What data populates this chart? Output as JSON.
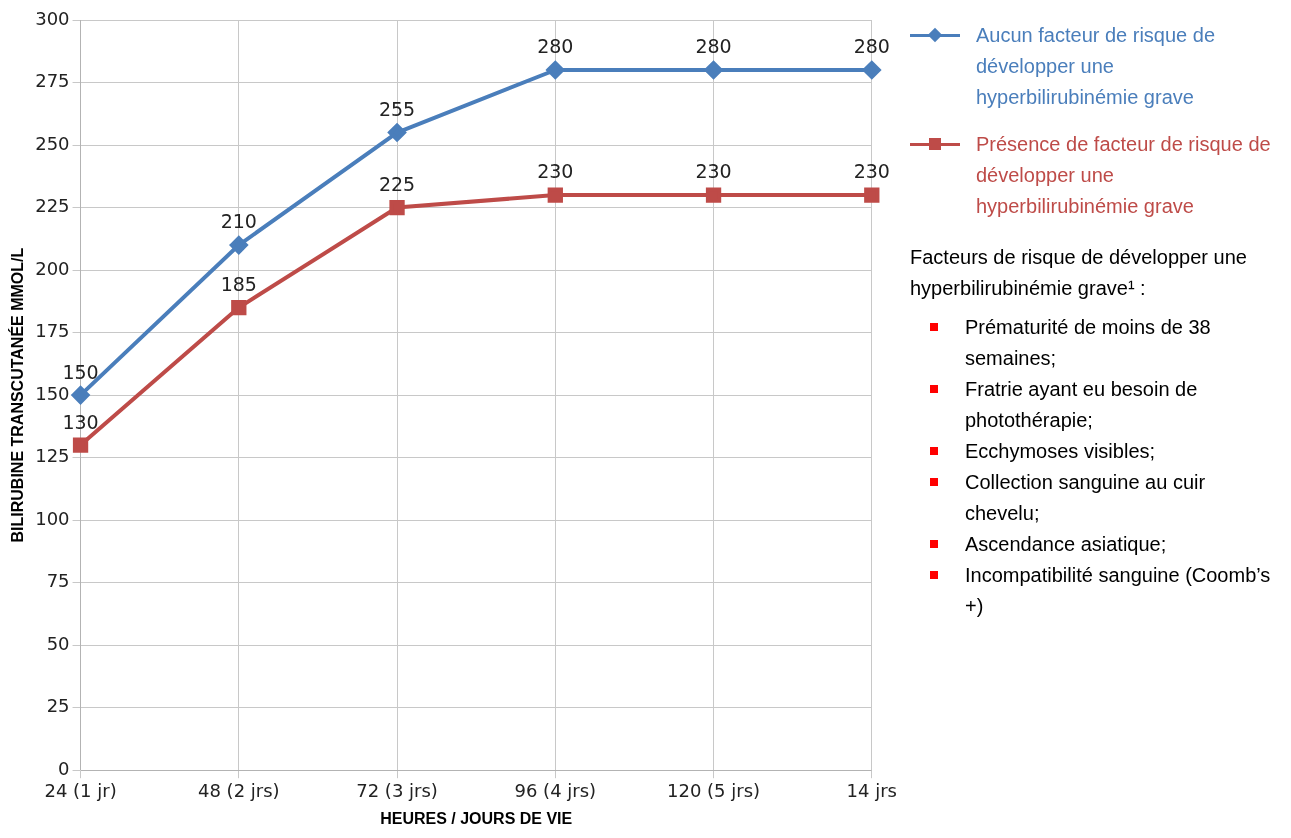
{
  "chart_data": {
    "type": "line",
    "xlabel": "HEURES / JOURS DE VIE",
    "ylabel": "BILIRUBINE TRANSCUTANÉE MMOL/L",
    "categories": [
      "24 (1 jr)",
      "48 (2 jrs)",
      "72 (3 jrs)",
      "96 (4 jrs)",
      "120 (5 jrs)",
      "14 jrs"
    ],
    "series": [
      {
        "name": "Aucun facteur de risque de développer une hyperbilirubinémie grave",
        "color": "#4a7ebb",
        "marker": "diamond",
        "values": [
          150,
          210,
          255,
          280,
          280,
          280
        ]
      },
      {
        "name": "Présence de facteur de risque de développer une hyperbilirubinémie grave",
        "color": "#be4b48",
        "marker": "square",
        "values": [
          130,
          185,
          225,
          230,
          230,
          230
        ]
      }
    ],
    "ylim": [
      0,
      300
    ],
    "yticks": [
      0,
      25,
      50,
      75,
      100,
      125,
      150,
      175,
      200,
      225,
      250,
      275,
      300
    ],
    "grid": true,
    "legend": "right",
    "data_labels": true,
    "line_style": "solid",
    "annotations": [
      "Facteurs de risque de développer une hyperbilirubinémie grave¹ :",
      "Prématurité de moins de 38 semaines;",
      "Fratrie ayant eu besoin de photothérapie;",
      "Ecchymoses visibles;",
      "Collection sanguine au cuir chevelu;",
      "Ascendance asiatique;",
      "Incompatibilité sanguine (Coomb’s +)"
    ]
  }
}
